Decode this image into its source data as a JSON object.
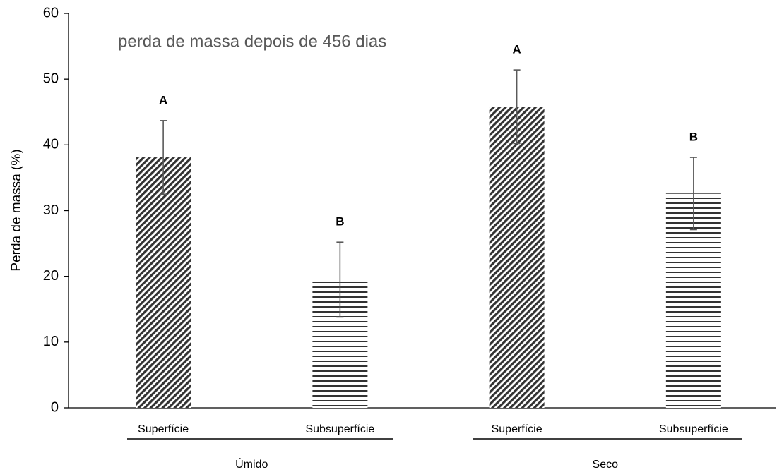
{
  "chart_data": {
    "type": "bar",
    "title": "perda de massa depois de 456 dias",
    "y_label": "Perda de massa (%)",
    "categories": [
      "Superfície",
      "Subsuperfície",
      "Superfície",
      "Subsuperfície"
    ],
    "groups": [
      "Úmido",
      "Seco"
    ],
    "values": [
      38.1,
      19.5,
      45.8,
      32.6
    ],
    "errors": [
      5.6,
      5.7,
      5.6,
      5.5
    ],
    "letters": [
      "A",
      "B",
      "A",
      "B"
    ],
    "color": "#333333",
    "ylim": [
      0,
      60
    ],
    "yticks": [
      0,
      10,
      20,
      30,
      40,
      50,
      60
    ],
    "grid": false
  }
}
